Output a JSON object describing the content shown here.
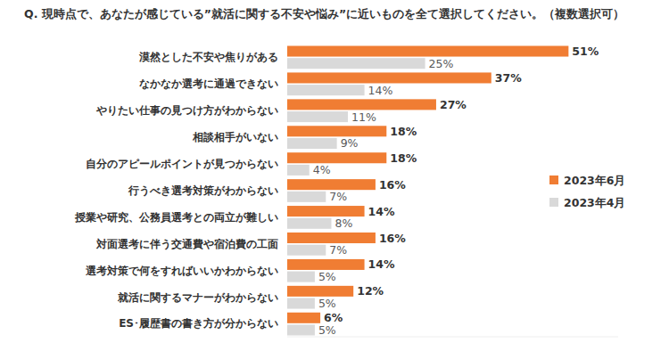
{
  "chart_data": {
    "type": "bar",
    "orientation": "horizontal",
    "title": "Q. 現時点で、あなたが感じている”就活に関する不安や悩み”に近いものを全て選択してください。（複数選択可）",
    "categories": [
      "漠然とした不安や焦りがある",
      "なかなか選考に通過できない",
      "やりたい仕事の見つけ方がわからない",
      "相談相手がいない",
      "自分のアピールポイントが見つからない",
      "行うべき選考対策がわからない",
      "授業や研究、公務員選考との両立が難しい",
      "対面選考に伴う交通費や宿泊費の工面",
      "選考対策で何をすればいいかわからない",
      "就活に関するマナーがわからない",
      "ES･履歴書の書き方が分からない"
    ],
    "series": [
      {
        "name": "2023年6月",
        "color": "#f07d33",
        "values": [
          51,
          37,
          27,
          18,
          18,
          16,
          14,
          16,
          14,
          12,
          6
        ],
        "value_labels": [
          "51%",
          "37%",
          "27%",
          "18%",
          "18%",
          "16%",
          "14%",
          "16%",
          "14%",
          "12%",
          "6%"
        ]
      },
      {
        "name": "2023年4月",
        "color": "#d9d9d9",
        "values": [
          25,
          14,
          11,
          9,
          4,
          7,
          8,
          7,
          5,
          5,
          5
        ],
        "value_labels": [
          "25%",
          "14%",
          "11%",
          "9%",
          "4%",
          "7%",
          "8%",
          "7%",
          "5%",
          "5%",
          "5%"
        ]
      }
    ],
    "xlim": [
      0,
      60
    ],
    "data_labels": true,
    "tick_labels": "y",
    "legend": "right",
    "grid": false
  }
}
